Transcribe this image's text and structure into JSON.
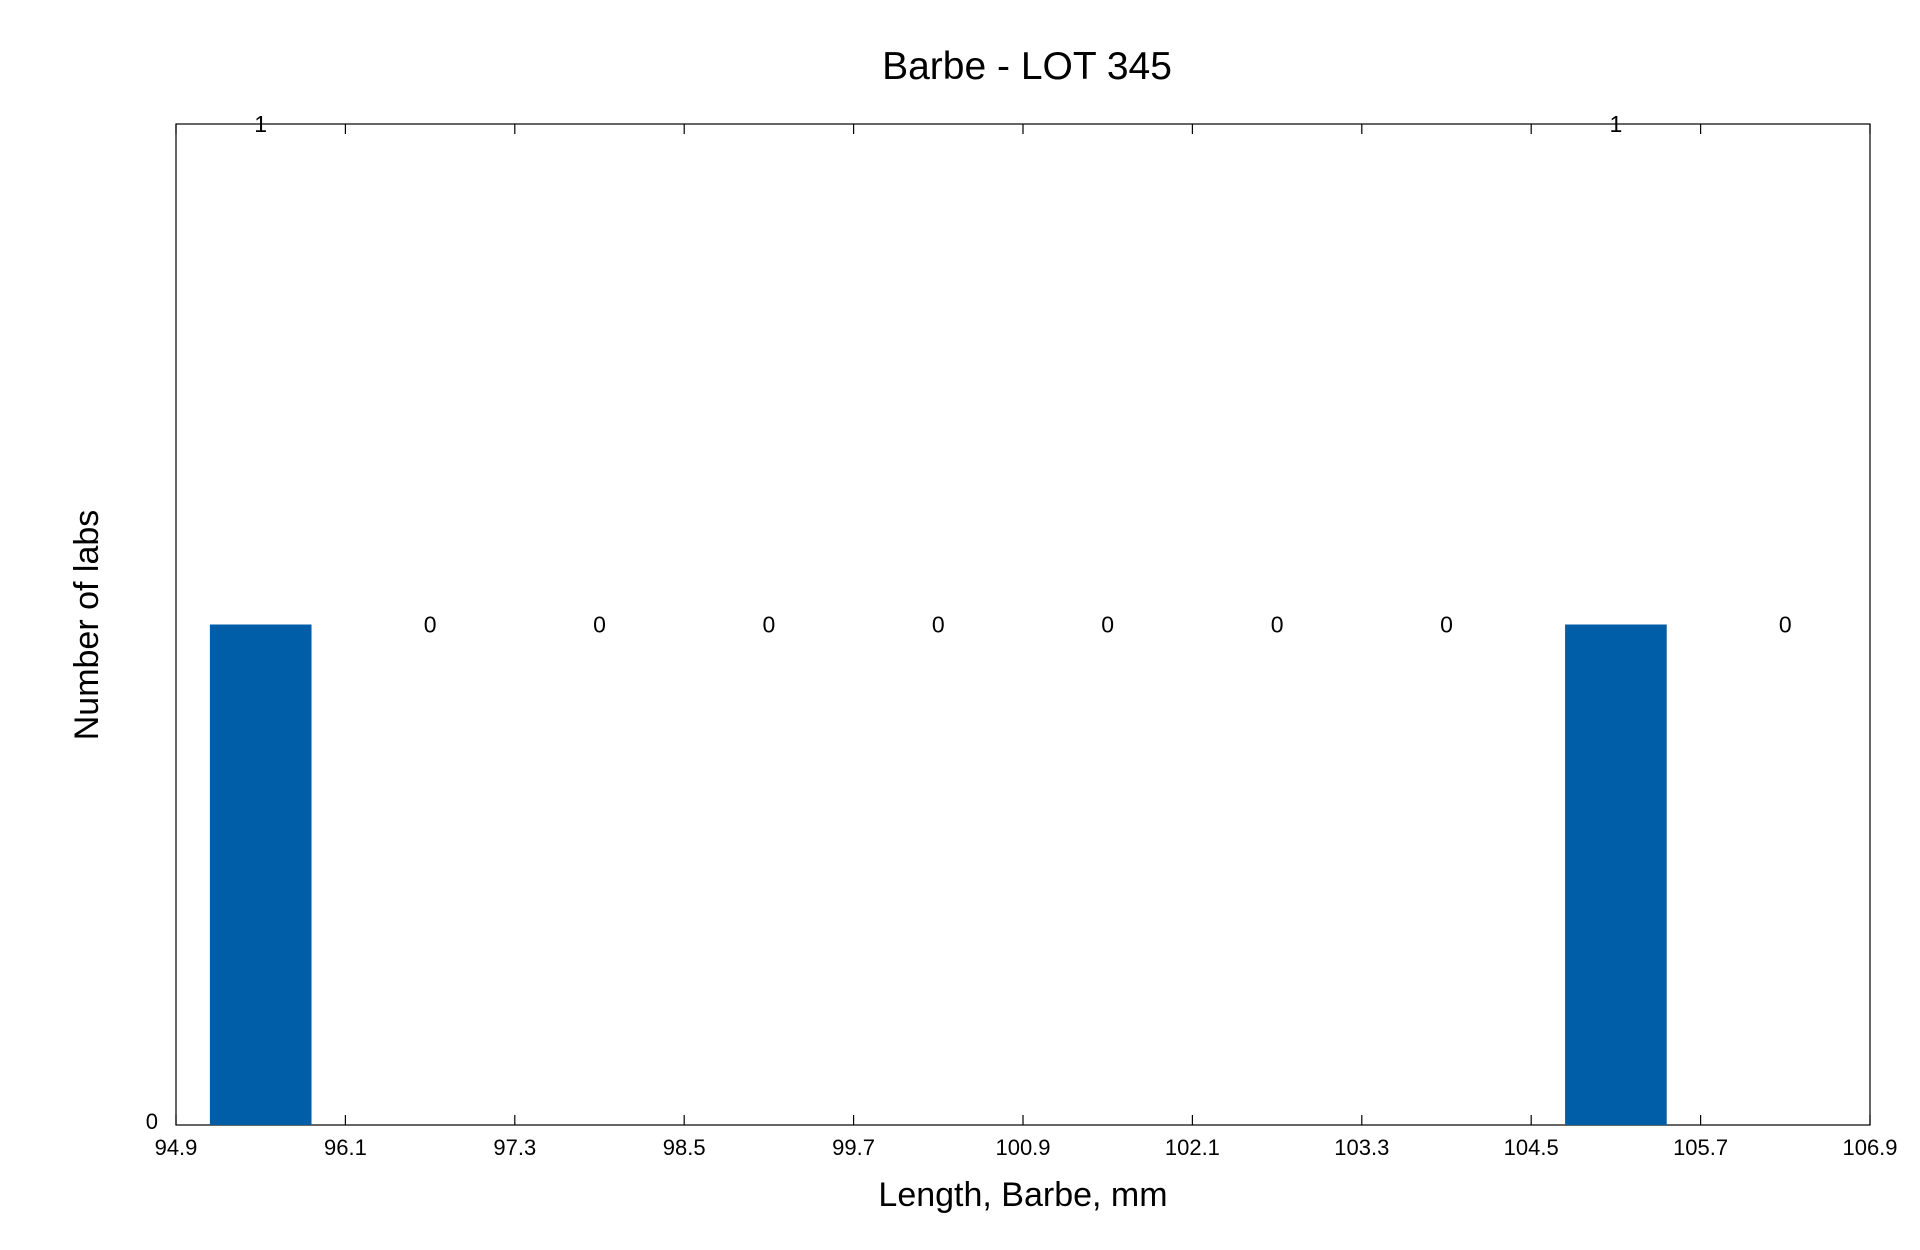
{
  "chart_data": {
    "type": "bar",
    "title": "Barbe - LOT 345",
    "xlabel": "Length, Barbe, mm",
    "ylabel": "Number of labs",
    "xlim": [
      94.9,
      106.9
    ],
    "x_ticks": [
      "94.9",
      "96.1",
      "97.3",
      "98.5",
      "99.7",
      "100.9",
      "102.1",
      "103.3",
      "104.5",
      "105.7",
      "106.9"
    ],
    "y_ticks": [
      "0"
    ],
    "bins": [
      95.5,
      96.7,
      97.9,
      99.1,
      100.3,
      101.5,
      102.7,
      103.9,
      105.1,
      106.3
    ],
    "values": [
      1,
      0,
      0,
      0,
      0,
      0,
      0,
      0,
      1,
      0
    ],
    "data_labels": [
      "1",
      "0",
      "0",
      "0",
      "0",
      "0",
      "0",
      "0",
      "1",
      "0"
    ],
    "bar_color": "#005ea8",
    "grid": false,
    "legend": "none"
  }
}
